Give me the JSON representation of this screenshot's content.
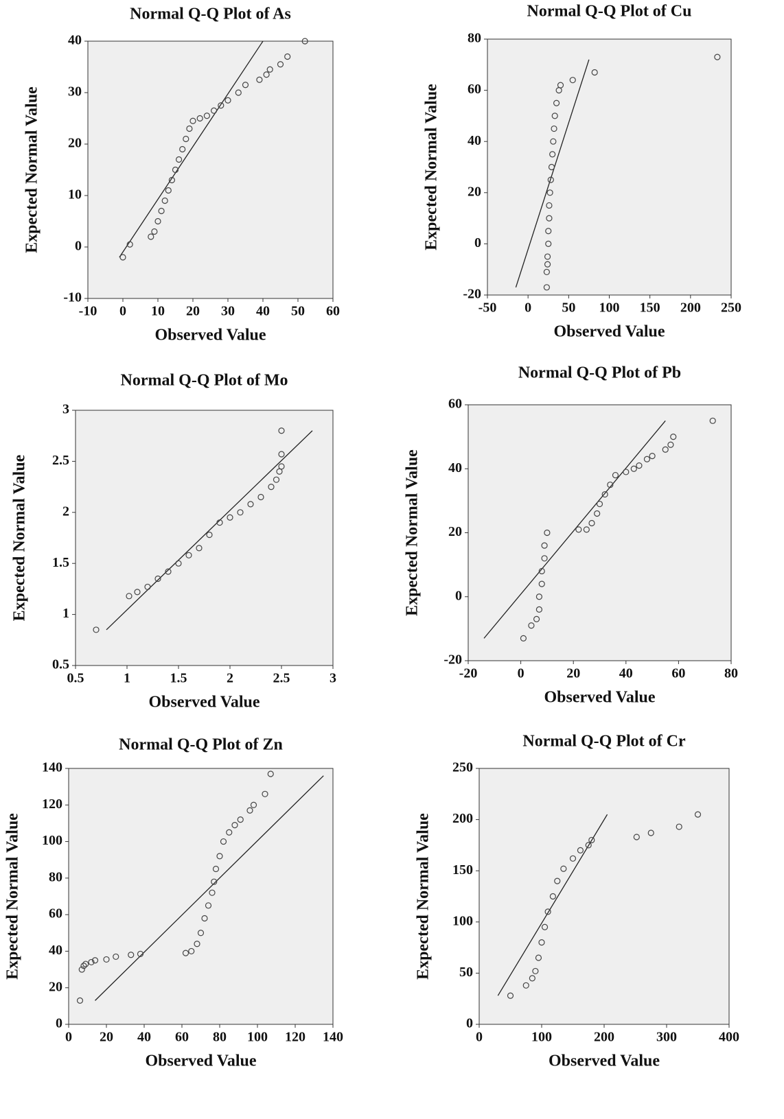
{
  "chart_data": [
    {
      "type": "scatter",
      "title": "Normal Q-Q Plot of As",
      "x_label": "Observed Value",
      "y_label": "Expected Normal Value",
      "xlim": [
        -10,
        60
      ],
      "ylim": [
        -10,
        40
      ],
      "xticks": [
        -10,
        0,
        10,
        20,
        30,
        40,
        50,
        60
      ],
      "yticks": [
        -10,
        0,
        10,
        20,
        30,
        40
      ],
      "x": [
        0,
        2,
        8,
        9,
        10,
        11,
        12,
        13,
        14,
        15,
        16,
        17,
        18,
        19,
        20,
        22,
        24,
        26,
        28,
        30,
        33,
        35,
        39,
        41,
        42,
        45,
        47,
        52
      ],
      "values": [
        -2,
        0.5,
        2,
        3,
        5,
        7,
        9,
        11,
        13,
        15,
        17,
        19,
        21,
        23,
        24.5,
        25,
        25.5,
        26.5,
        27.5,
        28.5,
        30,
        31.5,
        32.5,
        33.5,
        34.5,
        35.5,
        37,
        40
      ],
      "reference_line": {
        "x": [
          -1,
          40
        ],
        "y": [
          -2,
          40
        ]
      }
    },
    {
      "type": "scatter",
      "title": "Normal Q-Q Plot of Cu",
      "x_label": "Observed Value",
      "y_label": "Expected Normal Value",
      "xlim": [
        -50,
        250
      ],
      "ylim": [
        -20,
        80
      ],
      "xticks": [
        -50,
        0,
        50,
        100,
        150,
        200,
        250
      ],
      "yticks": [
        -20,
        0,
        20,
        40,
        60,
        80
      ],
      "x": [
        23,
        23,
        24,
        24,
        25,
        25,
        26,
        26,
        27,
        28,
        29,
        30,
        31,
        32,
        33,
        35,
        38,
        40,
        55,
        82,
        233
      ],
      "values": [
        -17,
        -11,
        -8,
        -5,
        0,
        5,
        10,
        15,
        20,
        25,
        30,
        35,
        40,
        45,
        50,
        55,
        60,
        62,
        64,
        67,
        73
      ],
      "reference_line": {
        "x": [
          -15,
          75
        ],
        "y": [
          -17,
          72
        ]
      }
    },
    {
      "type": "scatter",
      "title": "Normal Q-Q Plot of Mo",
      "x_label": "Observed Value",
      "y_label": "Expected Normal Value",
      "xlim": [
        0.5,
        3
      ],
      "ylim": [
        0.5,
        3
      ],
      "xticks": [
        0.5,
        1,
        1.5,
        2,
        2.5,
        3
      ],
      "yticks": [
        0.5,
        1,
        1.5,
        2,
        2.5,
        3
      ],
      "x": [
        0.7,
        1.02,
        1.1,
        1.2,
        1.3,
        1.4,
        1.5,
        1.6,
        1.7,
        1.8,
        1.9,
        2.0,
        2.1,
        2.2,
        2.3,
        2.4,
        2.45,
        2.48,
        2.5,
        2.5,
        2.5
      ],
      "values": [
        0.85,
        1.18,
        1.22,
        1.27,
        1.35,
        1.42,
        1.5,
        1.58,
        1.65,
        1.78,
        1.9,
        1.95,
        2.0,
        2.08,
        2.15,
        2.25,
        2.32,
        2.4,
        2.45,
        2.57,
        2.8
      ],
      "reference_line": {
        "x": [
          0.8,
          2.8
        ],
        "y": [
          0.85,
          2.8
        ]
      }
    },
    {
      "type": "scatter",
      "title": "Normal Q-Q Plot of Pb",
      "x_label": "Observed Value",
      "y_label": "Expected Normal Value",
      "xlim": [
        -20,
        80
      ],
      "ylim": [
        -20,
        60
      ],
      "xticks": [
        -20,
        0,
        20,
        40,
        60,
        80
      ],
      "yticks": [
        -20,
        0,
        20,
        40,
        60
      ],
      "x": [
        1,
        4,
        6,
        7,
        7,
        8,
        8,
        9,
        9,
        10,
        22,
        25,
        27,
        29,
        30,
        32,
        34,
        36,
        40,
        43,
        45,
        48,
        50,
        55,
        57,
        58,
        73
      ],
      "values": [
        -13,
        -9,
        -7,
        -4,
        0,
        4,
        8,
        12,
        16,
        20,
        21,
        21,
        23,
        26,
        29,
        32,
        35,
        38,
        39,
        40,
        41,
        43,
        44,
        46,
        47.5,
        50,
        55
      ],
      "reference_line": {
        "x": [
          -14,
          55
        ],
        "y": [
          -13,
          55
        ]
      }
    },
    {
      "type": "scatter",
      "title": "Normal Q-Q Plot of Zn",
      "x_label": "Observed Value",
      "y_label": "Expected Normal Value",
      "xlim": [
        0,
        140
      ],
      "ylim": [
        0,
        140
      ],
      "xticks": [
        0,
        20,
        40,
        60,
        80,
        100,
        120,
        140
      ],
      "yticks": [
        0,
        20,
        40,
        60,
        80,
        100,
        120,
        140
      ],
      "x": [
        6,
        7,
        8,
        9,
        12,
        14,
        20,
        25,
        33,
        38,
        62,
        65,
        68,
        70,
        72,
        74,
        76,
        77,
        78,
        80,
        82,
        85,
        88,
        91,
        96,
        98,
        104,
        107
      ],
      "values": [
        13,
        30,
        32,
        33,
        34,
        35,
        35.5,
        37,
        38,
        38.5,
        39,
        40,
        44,
        50,
        58,
        65,
        72,
        78,
        85,
        92,
        100,
        105,
        109,
        112,
        117,
        120,
        126,
        137
      ],
      "reference_line": {
        "x": [
          14,
          135
        ],
        "y": [
          13,
          136
        ]
      }
    },
    {
      "type": "scatter",
      "title": "Normal Q-Q Plot of Cr",
      "x_label": "Observed Value",
      "y_label": "Expected Normal Value",
      "xlim": [
        0,
        400
      ],
      "ylim": [
        0,
        250
      ],
      "xticks": [
        0,
        100,
        200,
        300,
        400
      ],
      "yticks": [
        0,
        50,
        100,
        150,
        200,
        250
      ],
      "x": [
        50,
        75,
        85,
        90,
        95,
        100,
        105,
        110,
        118,
        125,
        135,
        150,
        162,
        175,
        180,
        252,
        275,
        320,
        350
      ],
      "values": [
        28,
        38,
        45,
        52,
        65,
        80,
        95,
        110,
        125,
        140,
        152,
        162,
        170,
        175,
        180,
        183,
        187,
        193,
        205
      ],
      "reference_line": {
        "x": [
          30,
          205
        ],
        "y": [
          28,
          205
        ]
      }
    }
  ]
}
